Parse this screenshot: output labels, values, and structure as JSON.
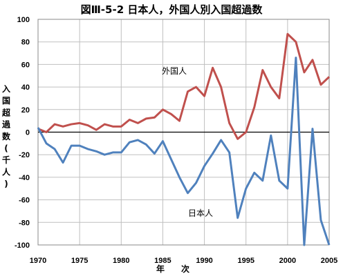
{
  "chart_data": {
    "type": "line",
    "title": "図Ⅲ-5-2 日本人，外国人別入国超過数",
    "xlabel": "年　　次",
    "ylabel": "入国超過数(千人)",
    "xlim": [
      1970,
      2005
    ],
    "ylim": [
      -100,
      100
    ],
    "x_ticks": [
      1970,
      1975,
      1980,
      1985,
      1990,
      1995,
      2000,
      2005
    ],
    "y_ticks": [
      100,
      80,
      60,
      40,
      20,
      0,
      -20,
      -40,
      -60,
      -80,
      -100
    ],
    "grid": true,
    "x": [
      1970,
      1971,
      1972,
      1973,
      1974,
      1975,
      1976,
      1977,
      1978,
      1979,
      1980,
      1981,
      1982,
      1983,
      1984,
      1985,
      1986,
      1987,
      1988,
      1989,
      1990,
      1991,
      1992,
      1993,
      1994,
      1995,
      1996,
      1997,
      1998,
      1999,
      2000,
      2001,
      2002,
      2003,
      2004,
      2005
    ],
    "series": [
      {
        "name": "外国人",
        "color": "#c0504d",
        "values": [
          3,
          0,
          7,
          5,
          7,
          8,
          6,
          2,
          7,
          5,
          5,
          11,
          8,
          12,
          13,
          20,
          16,
          10,
          36,
          40,
          32,
          57,
          40,
          8,
          -6,
          0,
          22,
          55,
          40,
          30,
          87,
          80,
          53,
          64,
          42,
          49
        ]
      },
      {
        "name": "日本人",
        "color": "#4f81bd",
        "values": [
          4,
          -10,
          -15,
          -27,
          -12,
          -12,
          -15,
          -17,
          -20,
          -18,
          -18,
          -9,
          -7,
          -11,
          -19,
          -8,
          -24,
          -40,
          -54,
          -45,
          -30,
          -19,
          -7,
          -18,
          -76,
          -50,
          -36,
          -43,
          -3,
          -43,
          -50,
          66,
          -100,
          3,
          -78,
          -100
        ]
      }
    ]
  }
}
